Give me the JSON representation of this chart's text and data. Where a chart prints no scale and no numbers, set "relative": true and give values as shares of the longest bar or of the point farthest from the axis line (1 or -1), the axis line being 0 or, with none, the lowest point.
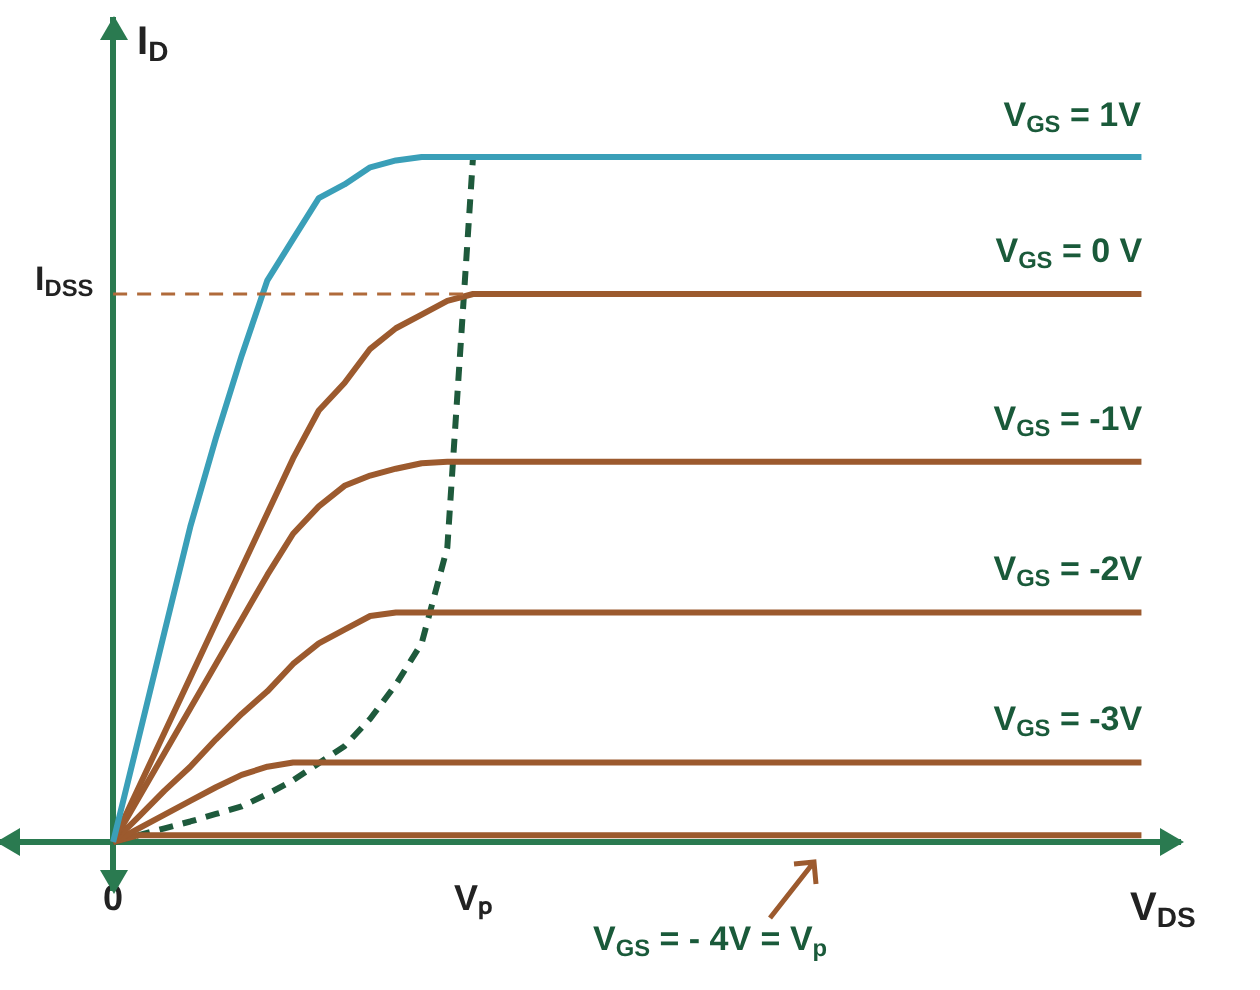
{
  "chart_data": {
    "type": "line",
    "relative": true,
    "xlabel": "V$_{DS}$",
    "ylabel": "I$_{D}$",
    "categories": [
      "0",
      null,
      null,
      null,
      null,
      null,
      null,
      null,
      null,
      null,
      null,
      null,
      null,
      null,
      "Vₚ",
      null,
      null,
      null,
      null,
      null,
      null,
      null,
      null,
      null,
      null,
      null,
      null,
      null,
      null,
      null,
      null,
      null,
      null,
      null,
      null,
      null,
      null,
      null,
      null,
      null,
      null
    ],
    "tick_labels": "x",
    "grid": false,
    "legend": false,
    "marker": "none",
    "series": [
      {
        "name": "V$_{GS}$ = 1V",
        "color": "#3a9fb8",
        "values": [
          0,
          0.153,
          0.307,
          0.46,
          0.59,
          0.71,
          0.82,
          0.88,
          0.94,
          0.96,
          0.985,
          0.995,
          1,
          1,
          1,
          1,
          1,
          1,
          1,
          1,
          1,
          1,
          1,
          1,
          1,
          1,
          1,
          1,
          1,
          1,
          1,
          1,
          1,
          1,
          1,
          1,
          1,
          1,
          1,
          1,
          1
        ]
      },
      {
        "name": "V$_{GS}$ = 0 V",
        "color": "#9c5a2e",
        "values": [
          0,
          0.08,
          0.16,
          0.24,
          0.32,
          0.4,
          0.48,
          0.56,
          0.63,
          0.67,
          0.72,
          0.75,
          0.77,
          0.79,
          0.8,
          0.8,
          0.8,
          0.8,
          0.8,
          0.8,
          0.8,
          0.8,
          0.8,
          0.8,
          0.8,
          0.8,
          0.8,
          0.8,
          0.8,
          0.8,
          0.8,
          0.8,
          0.8,
          0.8,
          0.8,
          0.8,
          0.8,
          0.8,
          0.8,
          0.8,
          0.8
        ]
      },
      {
        "name": "V$_{GS}$ = -1V",
        "color": "#9c5a2e",
        "values": [
          0,
          0.065,
          0.13,
          0.195,
          0.26,
          0.325,
          0.39,
          0.45,
          0.49,
          0.52,
          0.535,
          0.545,
          0.553,
          0.555,
          0.555,
          0.555,
          0.555,
          0.555,
          0.555,
          0.555,
          0.555,
          0.555,
          0.555,
          0.555,
          0.555,
          0.555,
          0.555,
          0.555,
          0.555,
          0.555,
          0.555,
          0.555,
          0.555,
          0.555,
          0.555,
          0.555,
          0.555,
          0.555,
          0.555,
          0.555,
          0.555
        ]
      },
      {
        "name": "V$_{GS}$ = -2V",
        "color": "#9c5a2e",
        "values": [
          0,
          0.037,
          0.075,
          0.11,
          0.15,
          0.187,
          0.22,
          0.26,
          0.29,
          0.31,
          0.33,
          0.335,
          0.335,
          0.335,
          0.335,
          0.335,
          0.335,
          0.335,
          0.335,
          0.335,
          0.335,
          0.335,
          0.335,
          0.335,
          0.335,
          0.335,
          0.335,
          0.335,
          0.335,
          0.335,
          0.335,
          0.335,
          0.335,
          0.335,
          0.335,
          0.335,
          0.335,
          0.335,
          0.335,
          0.335,
          0.335
        ]
      },
      {
        "name": "V$_{GS}$ = -3V",
        "color": "#9c5a2e",
        "values": [
          0,
          0.02,
          0.04,
          0.06,
          0.08,
          0.098,
          0.11,
          0.116,
          0.116,
          0.116,
          0.116,
          0.116,
          0.116,
          0.116,
          0.116,
          0.116,
          0.116,
          0.116,
          0.116,
          0.116,
          0.116,
          0.116,
          0.116,
          0.116,
          0.116,
          0.116,
          0.116,
          0.116,
          0.116,
          0.116,
          0.116,
          0.116,
          0.116,
          0.116,
          0.116,
          0.116,
          0.116,
          0.116,
          0.116,
          0.116,
          0.116
        ]
      },
      {
        "color": "#9c5a2e",
        "values": [
          0,
          0.01,
          0.01,
          0.01,
          0.01,
          0.01,
          0.01,
          0.01,
          0.01,
          0.01,
          0.01,
          0.01,
          0.01,
          0.01,
          0.01,
          0.01,
          0.01,
          0.01,
          0.01,
          0.01,
          0.01,
          0.01,
          0.01,
          0.01,
          0.01,
          0.01,
          0.01,
          0.01,
          0.01,
          0.01,
          0.01,
          0.01,
          0.01,
          0.01,
          0.01,
          0.01,
          0.01,
          0.01,
          0.01,
          0.01,
          0.01
        ]
      },
      {
        "color": "#1e5a3c",
        "line_style": "dashed",
        "values": [
          0,
          0.01,
          0.02,
          0.03,
          0.041,
          0.052,
          0.07,
          0.09,
          0.115,
          0.14,
          0.18,
          0.23,
          0.29,
          0.43,
          1,
          null,
          null,
          null,
          null,
          null,
          null,
          null,
          null,
          null,
          null,
          null,
          null,
          null,
          null,
          null,
          null,
          null,
          null,
          null,
          null,
          null,
          null,
          null,
          null,
          null,
          null
        ]
      }
    ],
    "ref_lines": [
      {
        "axis": "y",
        "value": 0.8,
        "label": "I$_{DSS}$",
        "color": "#b06a3a",
        "line_style": "dashed"
      }
    ],
    "annotations": [
      "V$_{GS}$ = - 4V = V$_{p}$"
    ]
  }
}
